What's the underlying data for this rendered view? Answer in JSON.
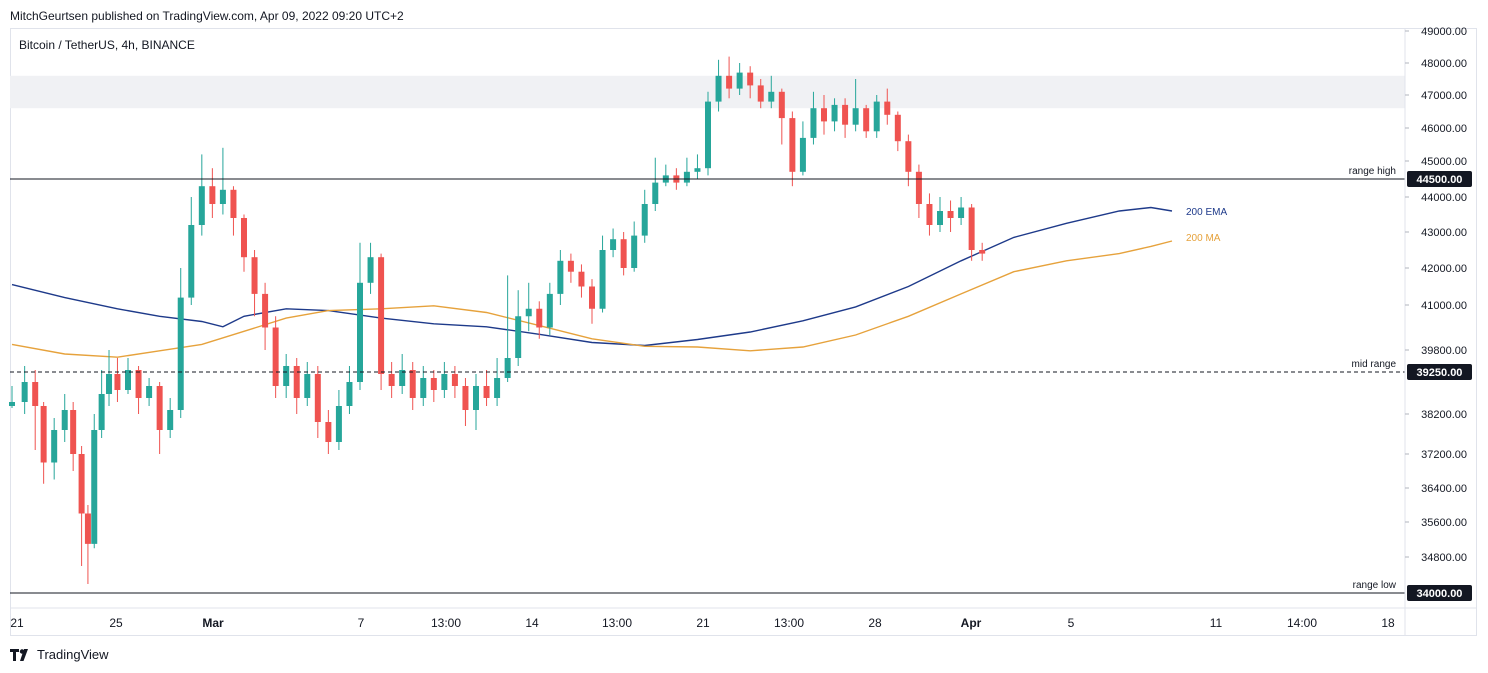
{
  "publisher": "MitchGeurtsen published on TradingView.com, Apr 09, 2022 09:20 UTC+2",
  "symbol": "Bitcoin / TetherUS, 4h, BINANCE",
  "footer": {
    "brand": "TradingView",
    "logo_icon": "tradingview-logo-icon"
  },
  "chart_data": {
    "type": "candlestick",
    "colors": {
      "up": "#26a69a",
      "down": "#ef5350",
      "ema": "#1e3a8a",
      "ma": "#e6a23c",
      "zone": "#f0f1f4"
    },
    "y_ticks": [
      "49000.00",
      "48000.00",
      "47000.00",
      "46000.00",
      "45000.00",
      "44000.00",
      "43000.00",
      "42000.00",
      "41000.00",
      "39800.00",
      "38200.00",
      "37200.00",
      "36400.00",
      "35600.00",
      "34800.00"
    ],
    "x_ticks": [
      "21",
      "25",
      "Mar",
      "7",
      "13:00",
      "14",
      "13:00",
      "21",
      "13:00",
      "28",
      "Apr",
      "5",
      "11",
      "14:00",
      "18"
    ],
    "levels": [
      {
        "name": "range high",
        "value": 44500,
        "label": "44500.00",
        "style": "solid"
      },
      {
        "name": "mid range",
        "value": 39250,
        "label": "39250.00",
        "style": "dashed"
      },
      {
        "name": "range low",
        "value": 34000,
        "label": "34000.00",
        "style": "solid"
      }
    ],
    "zone": [
      46600,
      47600
    ],
    "indicators": [
      {
        "name": "200 EMA",
        "color": "#1e3a8a",
        "points": [
          [
            0,
            41550
          ],
          [
            0.05,
            41200
          ],
          [
            0.1,
            40900
          ],
          [
            0.14,
            40700
          ],
          [
            0.18,
            40560
          ],
          [
            0.2,
            40420
          ],
          [
            0.22,
            40700
          ],
          [
            0.26,
            40900
          ],
          [
            0.3,
            40850
          ],
          [
            0.35,
            40650
          ],
          [
            0.4,
            40500
          ],
          [
            0.45,
            40420
          ],
          [
            0.5,
            40220
          ],
          [
            0.55,
            40000
          ],
          [
            0.6,
            39920
          ],
          [
            0.65,
            40080
          ],
          [
            0.7,
            40280
          ],
          [
            0.75,
            40580
          ],
          [
            0.8,
            40950
          ],
          [
            0.85,
            41500
          ],
          [
            0.9,
            42200
          ],
          [
            0.95,
            42850
          ],
          [
            1.0,
            43250
          ],
          [
            1.05,
            43600
          ],
          [
            1.08,
            43700
          ],
          [
            1.1,
            43600
          ]
        ]
      },
      {
        "name": "200 MA",
        "color": "#e6a23c",
        "points": [
          [
            0,
            39950
          ],
          [
            0.05,
            39700
          ],
          [
            0.1,
            39620
          ],
          [
            0.14,
            39780
          ],
          [
            0.18,
            39950
          ],
          [
            0.22,
            40300
          ],
          [
            0.26,
            40650
          ],
          [
            0.3,
            40850
          ],
          [
            0.35,
            40900
          ],
          [
            0.4,
            40980
          ],
          [
            0.45,
            40800
          ],
          [
            0.5,
            40450
          ],
          [
            0.55,
            40100
          ],
          [
            0.6,
            39900
          ],
          [
            0.65,
            39880
          ],
          [
            0.7,
            39780
          ],
          [
            0.75,
            39880
          ],
          [
            0.8,
            40200
          ],
          [
            0.85,
            40700
          ],
          [
            0.9,
            41300
          ],
          [
            0.95,
            41900
          ],
          [
            1.0,
            42200
          ],
          [
            1.05,
            42400
          ],
          [
            1.08,
            42600
          ],
          [
            1.1,
            42750
          ]
        ]
      }
    ],
    "candles": [
      [
        0,
        38400,
        38500,
        38900,
        38350
      ],
      [
        0.012,
        38500,
        39000,
        39400,
        38200
      ],
      [
        0.022,
        39000,
        38400,
        39300,
        37300
      ],
      [
        0.03,
        38400,
        37000,
        38500,
        36500
      ],
      [
        0.04,
        37000,
        37800,
        38100,
        36600
      ],
      [
        0.05,
        37800,
        38300,
        38700,
        37500
      ],
      [
        0.058,
        38300,
        37200,
        38500,
        36800
      ],
      [
        0.066,
        37200,
        35800,
        37400,
        34600
      ],
      [
        0.072,
        35800,
        35100,
        36000,
        34200
      ],
      [
        0.078,
        35100,
        37800,
        38200,
        35000
      ],
      [
        0.085,
        37800,
        38700,
        39300,
        37600
      ],
      [
        0.092,
        38700,
        39200,
        39800,
        38400
      ],
      [
        0.1,
        39200,
        38800,
        39600,
        38500
      ],
      [
        0.11,
        38800,
        39300,
        39600,
        38700
      ],
      [
        0.12,
        39300,
        38600,
        39400,
        38200
      ],
      [
        0.13,
        38600,
        38900,
        39100,
        38400
      ],
      [
        0.14,
        38900,
        37800,
        39000,
        37200
      ],
      [
        0.15,
        37800,
        38300,
        38600,
        37600
      ],
      [
        0.16,
        38300,
        41200,
        42000,
        38100
      ],
      [
        0.17,
        41200,
        43200,
        44000,
        41000
      ],
      [
        0.18,
        43200,
        44300,
        45200,
        42900
      ],
      [
        0.19,
        44300,
        43800,
        44800,
        43400
      ],
      [
        0.2,
        43800,
        44200,
        45400,
        43500
      ],
      [
        0.21,
        44200,
        43400,
        44300,
        42900
      ],
      [
        0.22,
        43400,
        42300,
        43500,
        41900
      ],
      [
        0.23,
        42300,
        41300,
        42500,
        40700
      ],
      [
        0.24,
        41300,
        40400,
        41600,
        39800
      ],
      [
        0.25,
        40400,
        38900,
        40700,
        38600
      ],
      [
        0.26,
        38900,
        39400,
        39700,
        38600
      ],
      [
        0.27,
        39400,
        38600,
        39600,
        38200
      ],
      [
        0.28,
        38600,
        39200,
        39500,
        38400
      ],
      [
        0.29,
        39200,
        38000,
        39400,
        37600
      ],
      [
        0.3,
        38000,
        37500,
        38300,
        37200
      ],
      [
        0.31,
        37500,
        38400,
        38800,
        37300
      ],
      [
        0.32,
        38400,
        39000,
        39400,
        38200
      ],
      [
        0.33,
        39000,
        41600,
        42700,
        38800
      ],
      [
        0.34,
        41600,
        42300,
        42700,
        41300
      ],
      [
        0.35,
        42300,
        39200,
        42400,
        38800
      ],
      [
        0.36,
        39200,
        38900,
        39500,
        38600
      ],
      [
        0.37,
        38900,
        39300,
        39700,
        38700
      ],
      [
        0.38,
        39300,
        38600,
        39500,
        38300
      ],
      [
        0.39,
        38600,
        39100,
        39400,
        38400
      ],
      [
        0.4,
        39100,
        38800,
        39300,
        38500
      ],
      [
        0.41,
        38800,
        39200,
        39500,
        38600
      ],
      [
        0.42,
        39200,
        38900,
        39400,
        38600
      ],
      [
        0.43,
        38900,
        38300,
        39100,
        37900
      ],
      [
        0.44,
        38300,
        38900,
        39200,
        37800
      ],
      [
        0.45,
        38900,
        38600,
        39300,
        38400
      ],
      [
        0.46,
        38600,
        39100,
        39600,
        38400
      ],
      [
        0.47,
        39100,
        39600,
        41800,
        39000
      ],
      [
        0.48,
        39600,
        40700,
        41400,
        39400
      ],
      [
        0.49,
        40700,
        40900,
        41600,
        40300
      ],
      [
        0.5,
        40900,
        40400,
        41100,
        40100
      ],
      [
        0.51,
        40400,
        41300,
        41600,
        40200
      ],
      [
        0.52,
        41300,
        42200,
        42500,
        41000
      ],
      [
        0.53,
        42200,
        41900,
        42400,
        41600
      ],
      [
        0.54,
        41900,
        41500,
        42100,
        41200
      ],
      [
        0.55,
        41500,
        40900,
        41700,
        40500
      ],
      [
        0.56,
        40900,
        42500,
        42900,
        40800
      ],
      [
        0.57,
        42500,
        42800,
        43100,
        42300
      ],
      [
        0.58,
        42800,
        42000,
        43000,
        41800
      ],
      [
        0.59,
        42000,
        42900,
        43300,
        41900
      ],
      [
        0.6,
        42900,
        43800,
        44200,
        42700
      ],
      [
        0.61,
        43800,
        44400,
        45100,
        43600
      ],
      [
        0.62,
        44400,
        44600,
        44900,
        44300
      ],
      [
        0.63,
        44600,
        44400,
        44800,
        44200
      ],
      [
        0.64,
        44400,
        44700,
        45100,
        44300
      ],
      [
        0.65,
        44700,
        44800,
        45200,
        44500
      ],
      [
        0.66,
        44800,
        46800,
        47100,
        44600
      ],
      [
        0.67,
        46800,
        47600,
        48100,
        46500
      ],
      [
        0.68,
        47600,
        47200,
        48200,
        46900
      ],
      [
        0.69,
        47200,
        47700,
        48000,
        47000
      ],
      [
        0.7,
        47700,
        47300,
        47900,
        46900
      ],
      [
        0.71,
        47300,
        46800,
        47500,
        46600
      ],
      [
        0.72,
        46800,
        47100,
        47600,
        46600
      ],
      [
        0.73,
        47100,
        46300,
        47200,
        45500
      ],
      [
        0.74,
        46300,
        44700,
        46500,
        44300
      ],
      [
        0.75,
        44700,
        45700,
        46200,
        44600
      ],
      [
        0.76,
        45700,
        46600,
        47100,
        45500
      ],
      [
        0.77,
        46600,
        46200,
        47000,
        45800
      ],
      [
        0.78,
        46200,
        46700,
        46900,
        45900
      ],
      [
        0.79,
        46700,
        46100,
        46900,
        45700
      ],
      [
        0.8,
        46100,
        46600,
        47500,
        45900
      ],
      [
        0.81,
        46600,
        45900,
        46700,
        45700
      ],
      [
        0.82,
        45900,
        46800,
        47000,
        45700
      ],
      [
        0.83,
        46800,
        46400,
        47200,
        46100
      ],
      [
        0.84,
        46400,
        45600,
        46500,
        45300
      ],
      [
        0.85,
        45600,
        44700,
        45800,
        44300
      ],
      [
        0.86,
        44700,
        43800,
        44900,
        43400
      ],
      [
        0.87,
        43800,
        43200,
        44100,
        42900
      ],
      [
        0.88,
        43200,
        43600,
        44000,
        43000
      ],
      [
        0.89,
        43600,
        43400,
        43900,
        43000
      ],
      [
        0.9,
        43400,
        43700,
        44000,
        43200
      ],
      [
        0.91,
        43700,
        42500,
        43800,
        42200
      ],
      [
        0.92,
        42500,
        42400,
        42700,
        42200
      ]
    ]
  }
}
